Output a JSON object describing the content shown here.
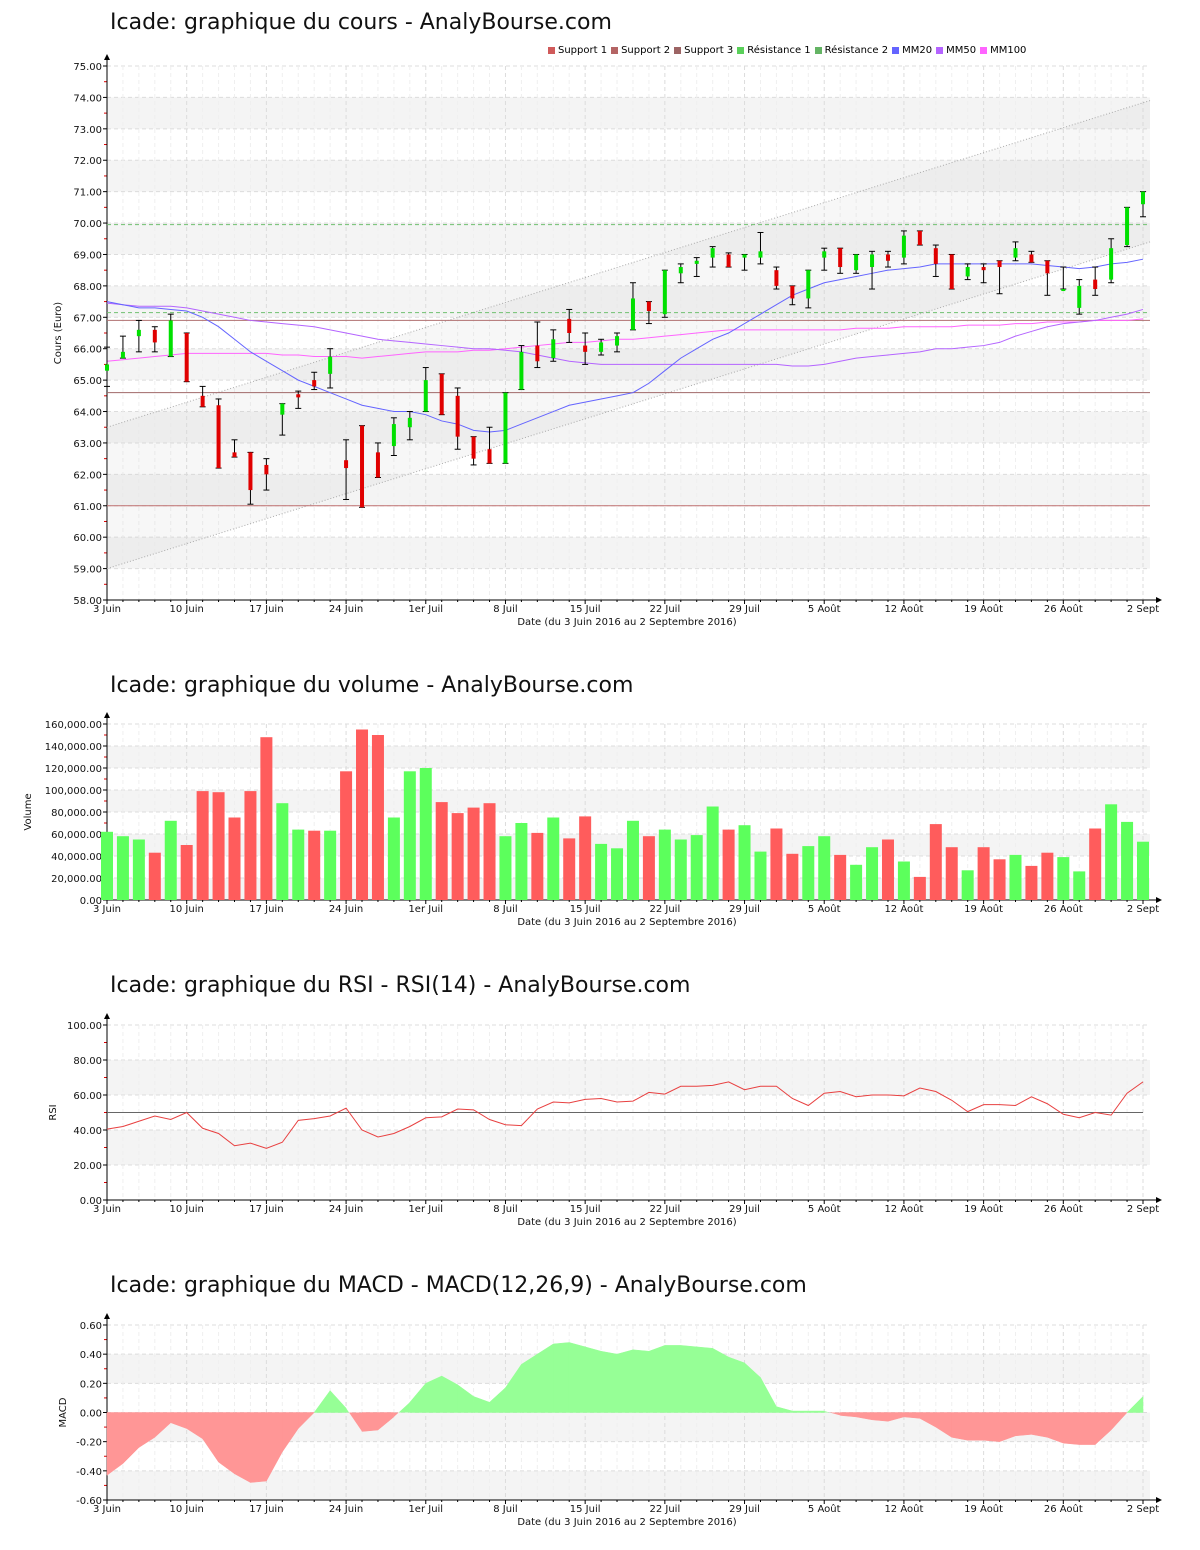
{
  "titles": {
    "price": "Icade: graphique du cours - AnalyBourse.com",
    "volume": "Icade: graphique du volume - AnalyBourse.com",
    "rsi": "Icade: graphique du RSI - RSI(14) - AnalyBourse.com",
    "macd": "Icade: graphique du MACD - MACD(12,26,9) - AnalyBourse.com"
  },
  "legend": [
    {
      "label": "Support 1",
      "color": "#d05a5a"
    },
    {
      "label": "Support 2",
      "color": "#b46464"
    },
    {
      "label": "Support 3",
      "color": "#9c6464"
    },
    {
      "label": "Résistance 1",
      "color": "#5ad05a"
    },
    {
      "label": "Résistance 2",
      "color": "#64b464"
    },
    {
      "label": "MM20",
      "color": "#6464ff"
    },
    {
      "label": "MM50",
      "color": "#b464ff"
    },
    {
      "label": "MM100",
      "color": "#ff64ff"
    }
  ],
  "x_axis": {
    "title": "Date (du 3 Juin 2016 au 2 Septembre 2016)",
    "ticks": [
      {
        "label": "3 Juin",
        "index": 0
      },
      {
        "label": "10 Juin",
        "index": 5
      },
      {
        "label": "17 Juin",
        "index": 10
      },
      {
        "label": "24 Juin",
        "index": 15
      },
      {
        "label": "1er Juil",
        "index": 20
      },
      {
        "label": "8 Juil",
        "index": 25
      },
      {
        "label": "15 Juil",
        "index": 30
      },
      {
        "label": "22 Juil",
        "index": 35
      },
      {
        "label": "29 Juil",
        "index": 40
      },
      {
        "label": "5 Août",
        "index": 45
      },
      {
        "label": "12 Août",
        "index": 50
      },
      {
        "label": "19 Août",
        "index": 55
      },
      {
        "label": "26 Août",
        "index": 60
      },
      {
        "label": "2 Sept",
        "index": 65
      }
    ]
  },
  "chart_data": [
    {
      "type": "candlestick",
      "title": "Icade: graphique du cours - AnalyBourse.com",
      "xlabel": "Date (du 3 Juin 2016 au 2 Septembre 2016)",
      "ylabel": "Cours (Euro)",
      "ylim": [
        58,
        75
      ],
      "yticks": [
        "58.00",
        "59.00",
        "60.00",
        "61.00",
        "62.00",
        "63.00",
        "64.00",
        "65.00",
        "66.00",
        "67.00",
        "68.00",
        "69.00",
        "70.00",
        "71.00",
        "72.00",
        "73.00",
        "74.00",
        "75.00"
      ],
      "grid": true,
      "legend_position": "top-right",
      "levels": {
        "support_1": 61.0,
        "support_2": 64.6,
        "support_3": 66.9,
        "resistance_1": 67.15,
        "resistance_2": 69.95
      },
      "trend_channel": {
        "lower": {
          "start": 59.0,
          "end": 69.4
        },
        "upper": {
          "start": 63.5,
          "end": 73.9
        }
      },
      "candles": [
        {
          "i": 0,
          "o": 65.3,
          "h": 66.05,
          "l": 64.8,
          "c": 65.5
        },
        {
          "i": 1,
          "o": 65.7,
          "h": 66.4,
          "l": 65.7,
          "c": 65.9
        },
        {
          "i": 2,
          "o": 66.4,
          "h": 66.9,
          "l": 65.9,
          "c": 66.6
        },
        {
          "i": 3,
          "o": 66.6,
          "h": 66.7,
          "l": 65.9,
          "c": 66.2
        },
        {
          "i": 4,
          "o": 65.75,
          "h": 67.1,
          "l": 65.75,
          "c": 66.9
        },
        {
          "i": 5,
          "o": 66.5,
          "h": 66.5,
          "l": 64.95,
          "c": 64.95
        },
        {
          "i": 6,
          "o": 64.5,
          "h": 64.8,
          "l": 64.15,
          "c": 64.15
        },
        {
          "i": 7,
          "o": 64.2,
          "h": 64.4,
          "l": 62.2,
          "c": 62.2
        },
        {
          "i": 8,
          "o": 62.7,
          "h": 63.1,
          "l": 62.55,
          "c": 62.55
        },
        {
          "i": 9,
          "o": 62.7,
          "h": 62.7,
          "l": 61.05,
          "c": 61.5
        },
        {
          "i": 10,
          "o": 62.3,
          "h": 62.5,
          "l": 61.5,
          "c": 62.0
        },
        {
          "i": 11,
          "o": 63.9,
          "h": 64.25,
          "l": 63.25,
          "c": 64.25
        },
        {
          "i": 12,
          "o": 64.55,
          "h": 64.65,
          "l": 64.1,
          "c": 64.45
        },
        {
          "i": 13,
          "o": 65.0,
          "h": 65.25,
          "l": 64.7,
          "c": 64.8
        },
        {
          "i": 14,
          "o": 65.2,
          "h": 66.0,
          "l": 64.75,
          "c": 65.75
        },
        {
          "i": 15,
          "o": 62.45,
          "h": 63.1,
          "l": 61.2,
          "c": 62.2
        },
        {
          "i": 16,
          "o": 63.55,
          "h": 63.55,
          "l": 60.95,
          "c": 60.95
        },
        {
          "i": 17,
          "o": 62.7,
          "h": 63.0,
          "l": 61.9,
          "c": 61.9
        },
        {
          "i": 18,
          "o": 62.9,
          "h": 63.8,
          "l": 62.6,
          "c": 63.6
        },
        {
          "i": 19,
          "o": 63.5,
          "h": 64.0,
          "l": 63.1,
          "c": 63.8
        },
        {
          "i": 20,
          "o": 64.0,
          "h": 65.4,
          "l": 64.0,
          "c": 65.0
        },
        {
          "i": 21,
          "o": 65.2,
          "h": 65.2,
          "l": 63.9,
          "c": 63.9
        },
        {
          "i": 22,
          "o": 64.5,
          "h": 64.75,
          "l": 62.8,
          "c": 63.2
        },
        {
          "i": 23,
          "o": 63.2,
          "h": 63.2,
          "l": 62.3,
          "c": 62.5
        },
        {
          "i": 24,
          "o": 62.8,
          "h": 63.5,
          "l": 62.35,
          "c": 62.35
        },
        {
          "i": 25,
          "o": 62.35,
          "h": 64.6,
          "l": 62.35,
          "c": 64.6
        },
        {
          "i": 26,
          "o": 64.7,
          "h": 66.1,
          "l": 64.7,
          "c": 65.9
        },
        {
          "i": 27,
          "o": 66.1,
          "h": 66.85,
          "l": 65.4,
          "c": 65.6
        },
        {
          "i": 28,
          "o": 65.7,
          "h": 66.6,
          "l": 65.6,
          "c": 66.3
        },
        {
          "i": 29,
          "o": 66.95,
          "h": 67.25,
          "l": 66.2,
          "c": 66.5
        },
        {
          "i": 30,
          "o": 66.1,
          "h": 66.5,
          "l": 65.5,
          "c": 65.9
        },
        {
          "i": 31,
          "o": 65.9,
          "h": 66.3,
          "l": 65.8,
          "c": 66.2
        },
        {
          "i": 32,
          "o": 66.1,
          "h": 66.5,
          "l": 65.9,
          "c": 66.4
        },
        {
          "i": 33,
          "o": 66.6,
          "h": 68.1,
          "l": 66.6,
          "c": 67.6
        },
        {
          "i": 34,
          "o": 67.5,
          "h": 67.5,
          "l": 66.8,
          "c": 67.2
        },
        {
          "i": 35,
          "o": 67.1,
          "h": 68.5,
          "l": 67.0,
          "c": 68.5
        },
        {
          "i": 36,
          "o": 68.4,
          "h": 68.7,
          "l": 68.1,
          "c": 68.6
        },
        {
          "i": 37,
          "o": 68.7,
          "h": 68.9,
          "l": 68.3,
          "c": 68.8
        },
        {
          "i": 38,
          "o": 68.9,
          "h": 69.25,
          "l": 68.6,
          "c": 69.2
        },
        {
          "i": 39,
          "o": 69.0,
          "h": 69.05,
          "l": 68.6,
          "c": 68.6
        },
        {
          "i": 40,
          "o": 68.9,
          "h": 69.0,
          "l": 68.5,
          "c": 69.0
        },
        {
          "i": 41,
          "o": 68.9,
          "h": 69.7,
          "l": 68.7,
          "c": 69.1
        },
        {
          "i": 42,
          "o": 68.5,
          "h": 68.6,
          "l": 67.9,
          "c": 68.0
        },
        {
          "i": 43,
          "o": 68.0,
          "h": 68.0,
          "l": 67.4,
          "c": 67.6
        },
        {
          "i": 44,
          "o": 67.6,
          "h": 68.5,
          "l": 67.3,
          "c": 68.5
        },
        {
          "i": 45,
          "o": 68.9,
          "h": 69.2,
          "l": 68.5,
          "c": 69.1
        },
        {
          "i": 46,
          "o": 69.2,
          "h": 69.2,
          "l": 68.4,
          "c": 68.6
        },
        {
          "i": 47,
          "o": 68.5,
          "h": 69.0,
          "l": 68.4,
          "c": 69.0
        },
        {
          "i": 48,
          "o": 68.6,
          "h": 69.1,
          "l": 67.9,
          "c": 69.0
        },
        {
          "i": 49,
          "o": 69.0,
          "h": 69.1,
          "l": 68.6,
          "c": 68.8
        },
        {
          "i": 50,
          "o": 68.9,
          "h": 69.75,
          "l": 68.7,
          "c": 69.6
        },
        {
          "i": 51,
          "o": 69.75,
          "h": 69.75,
          "l": 69.3,
          "c": 69.3
        },
        {
          "i": 52,
          "o": 69.2,
          "h": 69.3,
          "l": 68.3,
          "c": 68.7
        },
        {
          "i": 53,
          "o": 69.0,
          "h": 69.0,
          "l": 67.9,
          "c": 67.9
        },
        {
          "i": 54,
          "o": 68.3,
          "h": 68.7,
          "l": 68.2,
          "c": 68.6
        },
        {
          "i": 55,
          "o": 68.6,
          "h": 68.7,
          "l": 68.1,
          "c": 68.5
        },
        {
          "i": 56,
          "o": 68.8,
          "h": 68.8,
          "l": 67.75,
          "c": 68.6
        },
        {
          "i": 57,
          "o": 68.9,
          "h": 69.4,
          "l": 68.8,
          "c": 69.2
        },
        {
          "i": 58,
          "o": 69.0,
          "h": 69.1,
          "l": 68.75,
          "c": 68.75
        },
        {
          "i": 59,
          "o": 68.8,
          "h": 68.8,
          "l": 67.7,
          "c": 68.4
        },
        {
          "i": 60,
          "o": 67.9,
          "h": 68.6,
          "l": 67.9,
          "c": 67.9
        },
        {
          "i": 61,
          "o": 67.3,
          "h": 68.2,
          "l": 67.1,
          "c": 68.0
        },
        {
          "i": 62,
          "o": 68.2,
          "h": 68.6,
          "l": 67.7,
          "c": 67.9
        },
        {
          "i": 63,
          "o": 68.2,
          "h": 69.5,
          "l": 68.1,
          "c": 69.2
        },
        {
          "i": 64,
          "o": 69.3,
          "h": 70.5,
          "l": 69.25,
          "c": 70.5
        },
        {
          "i": 65,
          "o": 70.6,
          "h": 71.0,
          "l": 70.2,
          "c": 71.0
        }
      ],
      "mm20": [
        67.5,
        67.4,
        67.3,
        67.3,
        67.25,
        67.2,
        67.0,
        66.7,
        66.3,
        65.9,
        65.6,
        65.3,
        65.0,
        64.8,
        64.6,
        64.4,
        64.2,
        64.1,
        64.0,
        64.0,
        63.9,
        63.7,
        63.6,
        63.4,
        63.35,
        63.4,
        63.6,
        63.8,
        64.0,
        64.2,
        64.3,
        64.4,
        64.5,
        64.6,
        64.9,
        65.3,
        65.7,
        66.0,
        66.3,
        66.5,
        66.8,
        67.1,
        67.4,
        67.7,
        67.9,
        68.1,
        68.2,
        68.3,
        68.4,
        68.5,
        68.55,
        68.6,
        68.7,
        68.7,
        68.7,
        68.7,
        68.7,
        68.7,
        68.7,
        68.65,
        68.6,
        68.55,
        68.6,
        68.7,
        68.75,
        68.85
      ],
      "mm50": [
        67.45,
        67.4,
        67.35,
        67.35,
        67.35,
        67.3,
        67.2,
        67.1,
        67.0,
        66.9,
        66.85,
        66.8,
        66.75,
        66.7,
        66.6,
        66.5,
        66.4,
        66.3,
        66.25,
        66.2,
        66.15,
        66.1,
        66.05,
        66.0,
        66.0,
        65.95,
        65.9,
        65.8,
        65.7,
        65.6,
        65.55,
        65.5,
        65.5,
        65.5,
        65.5,
        65.5,
        65.5,
        65.5,
        65.5,
        65.5,
        65.5,
        65.5,
        65.5,
        65.45,
        65.45,
        65.5,
        65.6,
        65.7,
        65.75,
        65.8,
        65.85,
        65.9,
        66.0,
        66.0,
        66.05,
        66.1,
        66.2,
        66.4,
        66.55,
        66.7,
        66.8,
        66.85,
        66.9,
        67.0,
        67.1,
        67.25
      ],
      "mm100": [
        65.6,
        65.65,
        65.7,
        65.75,
        65.8,
        65.85,
        65.85,
        65.85,
        65.85,
        65.85,
        65.85,
        65.8,
        65.8,
        65.75,
        65.75,
        65.75,
        65.7,
        65.75,
        65.8,
        65.85,
        65.9,
        65.9,
        65.9,
        65.95,
        65.95,
        66.0,
        66.05,
        66.1,
        66.15,
        66.2,
        66.2,
        66.25,
        66.3,
        66.3,
        66.35,
        66.4,
        66.45,
        66.5,
        66.55,
        66.6,
        66.6,
        66.6,
        66.6,
        66.6,
        66.6,
        66.6,
        66.6,
        66.65,
        66.65,
        66.65,
        66.7,
        66.7,
        66.7,
        66.7,
        66.75,
        66.75,
        66.75,
        66.8,
        66.8,
        66.85,
        66.85,
        66.85,
        66.9,
        66.9,
        66.9,
        66.95
      ]
    },
    {
      "type": "bar",
      "title": "Icade: graphique du volume - AnalyBourse.com",
      "xlabel": "Date (du 3 Juin 2016 au 2 Septembre 2016)",
      "ylabel": "Volume",
      "ylim": [
        0,
        160000
      ],
      "yticks": [
        "0.00",
        "20,000.00",
        "40,000.00",
        "60,000.00",
        "80,000.00",
        "100,000.00",
        "120,000.00",
        "140,000.00",
        "160,000.00"
      ],
      "grid": true,
      "values": [
        62000,
        58000,
        55000,
        43000,
        72000,
        50000,
        99000,
        98000,
        75000,
        99000,
        148000,
        88000,
        64000,
        63000,
        63000,
        117000,
        155000,
        150000,
        75000,
        117000,
        120000,
        89000,
        79000,
        84000,
        88000,
        58000,
        70000,
        61000,
        75000,
        56000,
        76000,
        51000,
        47000,
        72000,
        58000,
        64000,
        55000,
        59000,
        85000,
        64000,
        68000,
        44000,
        65000,
        42000,
        49000,
        58000,
        41000,
        32000,
        48000,
        55000,
        35000,
        21000,
        69000,
        48000,
        27000,
        48000,
        37000,
        41000,
        31000,
        43000,
        39000,
        26000,
        65000,
        87000,
        71000,
        53000
      ],
      "colors": [
        "up",
        "up",
        "up",
        "down",
        "up",
        "down",
        "down",
        "down",
        "down",
        "down",
        "down",
        "up",
        "up",
        "down",
        "up",
        "down",
        "down",
        "down",
        "up",
        "up",
        "up",
        "down",
        "down",
        "down",
        "down",
        "up",
        "up",
        "down",
        "up",
        "down",
        "down",
        "up",
        "up",
        "up",
        "down",
        "up",
        "up",
        "up",
        "up",
        "down",
        "up",
        "up",
        "down",
        "down",
        "up",
        "up",
        "down",
        "up",
        "up",
        "down",
        "up",
        "down",
        "down",
        "down",
        "up",
        "down",
        "down",
        "up",
        "down",
        "down",
        "up",
        "up",
        "down",
        "up",
        "up",
        "up"
      ]
    },
    {
      "type": "line",
      "title": "Icade: graphique du RSI - RSI(14) - AnalyBourse.com",
      "xlabel": "Date (du 3 Juin 2016 au 2 Septembre 2016)",
      "ylabel": "RSI",
      "ylim": [
        0,
        100
      ],
      "yticks": [
        "0.00",
        "20.00",
        "40.00",
        "60.00",
        "80.00",
        "100.00"
      ],
      "grid": true,
      "reference_line": 50,
      "values": [
        40.5,
        42,
        45,
        48,
        46,
        50,
        41,
        38,
        31,
        32.5,
        29.5,
        33,
        45.5,
        46.5,
        48,
        52.5,
        40,
        36,
        38,
        42,
        47,
        47.5,
        52,
        51.5,
        46,
        43,
        42.5,
        52,
        56,
        55.5,
        57.5,
        58,
        56,
        56.5,
        61.5,
        60.5,
        65,
        65,
        65.5,
        67.5,
        63,
        65,
        65,
        58,
        54,
        61,
        62,
        59,
        60,
        60,
        59.5,
        64,
        62,
        57,
        50.5,
        54.5,
        54.5,
        54,
        59,
        55,
        49,
        47,
        50,
        48.5,
        61,
        67.5
      ]
    },
    {
      "type": "area",
      "title": "Icade: graphique du MACD - MACD(12,26,9) - AnalyBourse.com",
      "xlabel": "Date (du 3 Juin 2016 au 2 Septembre 2016)",
      "ylabel": "MACD",
      "ylim": [
        -0.6,
        0.6
      ],
      "yticks": [
        "-0.60",
        "-0.40",
        "-0.20",
        "0.00",
        "0.20",
        "0.40",
        "0.60"
      ],
      "grid": true,
      "values": [
        -0.43,
        -0.35,
        -0.24,
        -0.17,
        -0.07,
        -0.11,
        -0.18,
        -0.34,
        -0.42,
        -0.48,
        -0.47,
        -0.27,
        -0.11,
        0.0,
        0.15,
        0.03,
        -0.13,
        -0.12,
        -0.03,
        0.07,
        0.2,
        0.25,
        0.19,
        0.11,
        0.07,
        0.17,
        0.33,
        0.4,
        0.47,
        0.48,
        0.45,
        0.42,
        0.4,
        0.43,
        0.42,
        0.46,
        0.46,
        0.45,
        0.44,
        0.38,
        0.34,
        0.24,
        0.04,
        0.01,
        0.01,
        0.01,
        -0.02,
        -0.03,
        -0.05,
        -0.06,
        -0.03,
        -0.04,
        -0.1,
        -0.17,
        -0.19,
        -0.19,
        -0.2,
        -0.16,
        -0.15,
        -0.17,
        -0.21,
        -0.22,
        -0.22,
        -0.12,
        0.0,
        0.11
      ]
    }
  ]
}
